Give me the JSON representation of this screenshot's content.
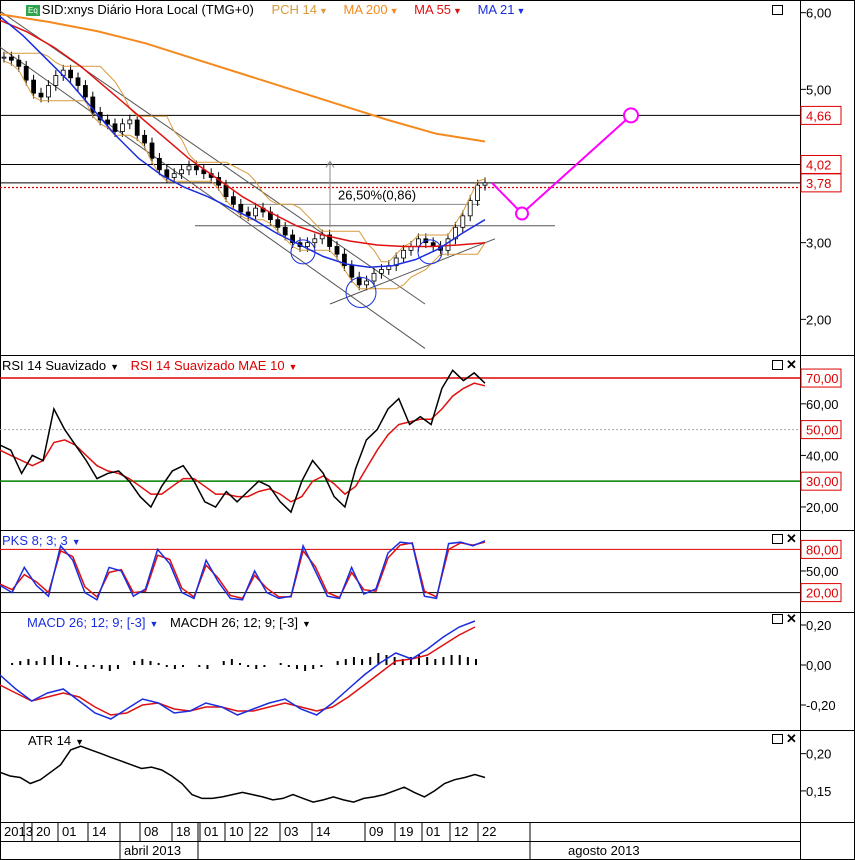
{
  "colors": {
    "price": "#000000",
    "pch14": "#d89a3a",
    "ma200": "#f48a1e",
    "ma55": "#e01010",
    "ma21": "#1a2ee0",
    "projection": "#ff00ff",
    "rsi_overbought_line": "#dd0000",
    "rsi_oversold_line": "#008000",
    "value_label_bg": "#ff0000"
  },
  "price_panel": {
    "symbol_badge": "Eq",
    "title": "SID:xnys Diário Hora Local (TMG+0)",
    "legend": [
      {
        "label": "PCH 14",
        "color": "#d89a3a"
      },
      {
        "label": "MA 200",
        "color": "#f48a1e"
      },
      {
        "label": "MA 55",
        "color": "#e01010"
      },
      {
        "label": "MA 21",
        "color": "#1a2ee0"
      }
    ],
    "annotation": "26,50%(0,86)",
    "price_labels": [
      "4,66",
      "4,02",
      "3,78"
    ],
    "axis_ticks": [
      "6,00",
      "5,00",
      "4,00",
      "3,00",
      "2,00"
    ]
  },
  "rsi_panel": {
    "legend": [
      {
        "label": "RSI 14 Suavizado",
        "color": "#000000"
      },
      {
        "label": "RSI 14 Suavizado MAE 10",
        "color": "#dd0000"
      }
    ],
    "level_labels": [
      "70,00",
      "50,00",
      "30,00"
    ],
    "axis_ticks": [
      "60,00",
      "40,00",
      "20,00"
    ]
  },
  "stoch_panel": {
    "legend": [
      {
        "label": "PKS 8; 3; 3",
        "color": "#1a2ee0"
      }
    ],
    "level_labels": [
      "80,00",
      "20,00"
    ],
    "axis_ticks": [
      "50,00"
    ]
  },
  "macd_panel": {
    "legend": [
      {
        "label": "MACD 26; 12; 9; [-3]",
        "color": "#1a2ee0"
      },
      {
        "label": "MACDH 26; 12; 9; [-3]",
        "color": "#000000"
      }
    ],
    "axis_ticks": [
      "0,20",
      "0,00",
      "-0,20"
    ]
  },
  "atr_panel": {
    "legend": [
      {
        "label": "ATR 14",
        "color": "#000000"
      }
    ],
    "axis_ticks": [
      "0,20",
      "0,15"
    ]
  },
  "time_axis": {
    "day_ticks": [
      "2013",
      "20",
      "01",
      "14",
      "08",
      "18",
      "01",
      "10",
      "22",
      "03",
      "14",
      "09",
      "19",
      "01",
      "12",
      "22"
    ],
    "month_labels": [
      "abril 2013",
      "agosto 2013"
    ]
  },
  "chart_data": [
    {
      "type": "candlestick",
      "panel": "price",
      "ylim": [
        1.6,
        6.1
      ],
      "series": [
        {
          "name": "SID",
          "values": [
            5.42,
            5.38,
            5.3,
            5.12,
            4.95,
            4.9,
            5.05,
            5.18,
            5.25,
            5.15,
            5.05,
            4.9,
            4.7,
            4.6,
            4.55,
            4.45,
            4.55,
            4.6,
            4.4,
            4.3,
            4.1,
            3.95,
            3.85,
            3.9,
            3.95,
            4.0,
            3.95,
            3.9,
            3.85,
            3.75,
            3.6,
            3.5,
            3.4,
            3.35,
            3.45,
            3.4,
            3.3,
            3.2,
            3.1,
            3.0,
            2.95,
            3.0,
            3.05,
            3.1,
            2.95,
            2.85,
            2.7,
            2.55,
            2.45,
            2.5,
            2.6,
            2.65,
            2.7,
            2.8,
            2.9,
            2.95,
            3.05,
            3.0,
            2.95,
            2.9,
            3.05,
            3.2,
            3.35,
            3.55,
            3.75,
            3.78
          ]
        },
        {
          "name": "MA 21",
          "values": [
            5.95,
            5.7,
            5.4,
            5.1,
            4.75,
            4.4,
            4.1,
            3.88,
            3.72,
            3.6,
            3.45,
            3.3,
            3.12,
            2.97,
            2.82,
            2.72,
            2.68,
            2.7,
            2.78,
            2.92,
            3.12,
            3.3
          ]
        },
        {
          "name": "MA 55",
          "values": [
            5.9,
            5.75,
            5.55,
            5.3,
            5.0,
            4.7,
            4.4,
            4.1,
            3.85,
            3.6,
            3.4,
            3.22,
            3.1,
            3.02,
            2.97,
            2.95,
            2.95,
            2.97,
            3.0
          ]
        },
        {
          "name": "MA 200",
          "values": [
            5.98,
            5.88,
            5.76,
            5.6,
            5.4,
            5.2,
            5.0,
            4.8,
            4.6,
            4.42,
            4.32
          ]
        },
        {
          "name": "Projection",
          "values": [
            3.78,
            3.38,
            4.66
          ]
        }
      ]
    },
    {
      "type": "line",
      "panel": "rsi",
      "ylim": [
        13,
        77
      ],
      "series": [
        {
          "name": "RSI 14 Suavizado",
          "values": [
            44,
            42,
            33,
            40,
            38,
            58,
            50,
            44,
            38,
            31,
            33,
            34,
            30,
            24,
            20,
            28,
            34,
            36,
            30,
            22,
            20,
            26,
            22,
            26,
            30,
            28,
            22,
            18,
            30,
            38,
            33,
            24,
            20,
            35,
            46,
            50,
            58,
            62,
            52,
            55,
            52,
            66,
            73,
            69,
            72,
            68
          ]
        },
        {
          "name": "RSI 14 Suavizado MAE 10",
          "values": [
            42,
            40,
            38,
            36,
            38,
            45,
            46,
            44,
            40,
            36,
            34,
            33,
            31,
            28,
            25,
            25,
            28,
            31,
            31,
            28,
            25,
            25,
            24,
            24,
            26,
            27,
            25,
            22,
            24,
            30,
            32,
            29,
            25,
            28,
            35,
            42,
            48,
            52,
            53,
            54,
            54,
            58,
            63,
            66,
            68,
            67
          ]
        }
      ]
    },
    {
      "type": "line",
      "panel": "stochastic",
      "ylim": [
        0,
        100
      ],
      "series": [
        {
          "name": "PKS 8; 3; 3",
          "values": [
            30,
            20,
            55,
            30,
            15,
            85,
            65,
            20,
            10,
            55,
            50,
            15,
            25,
            80,
            60,
            20,
            12,
            65,
            35,
            12,
            10,
            50,
            20,
            12,
            15,
            85,
            50,
            15,
            12,
            55,
            18,
            25,
            75,
            90,
            88,
            15,
            12,
            88,
            90,
            85,
            92
          ]
        },
        {
          "name": "Signal",
          "values": [
            32,
            24,
            45,
            35,
            20,
            78,
            70,
            28,
            14,
            48,
            52,
            20,
            22,
            72,
            66,
            26,
            14,
            58,
            40,
            16,
            12,
            44,
            26,
            14,
            14,
            78,
            56,
            20,
            13,
            48,
            24,
            22,
            68,
            86,
            89,
            22,
            14,
            80,
            89,
            86,
            90
          ]
        }
      ]
    },
    {
      "type": "line",
      "panel": "macd",
      "ylim": [
        -0.3,
        0.24
      ],
      "series": [
        {
          "name": "MACD 26; 12; 9; [-3]",
          "values": [
            -0.05,
            -0.12,
            -0.18,
            -0.14,
            -0.12,
            -0.18,
            -0.24,
            -0.27,
            -0.22,
            -0.17,
            -0.19,
            -0.24,
            -0.23,
            -0.19,
            -0.21,
            -0.25,
            -0.22,
            -0.19,
            -0.17,
            -0.22,
            -0.25,
            -0.19,
            -0.12,
            -0.05,
            0.01,
            0.06,
            0.03,
            0.08,
            0.14,
            0.19,
            0.22
          ]
        },
        {
          "name": "Signal",
          "values": [
            -0.1,
            -0.14,
            -0.18,
            -0.16,
            -0.14,
            -0.16,
            -0.21,
            -0.25,
            -0.24,
            -0.2,
            -0.19,
            -0.22,
            -0.23,
            -0.21,
            -0.21,
            -0.23,
            -0.23,
            -0.21,
            -0.19,
            -0.21,
            -0.23,
            -0.21,
            -0.16,
            -0.1,
            -0.04,
            0.02,
            0.03,
            0.05,
            0.1,
            0.15,
            0.19
          ]
        },
        {
          "name": "MACDH 26; 12; 9; [-3]",
          "values": [
            0.0,
            0.01,
            0.02,
            0.03,
            0.02,
            0.04,
            0.05,
            0.04,
            0.02,
            -0.01,
            -0.02,
            -0.01,
            -0.02,
            -0.03,
            -0.02,
            0.0,
            0.02,
            0.03,
            0.02,
            0.01,
            -0.01,
            -0.02,
            -0.01,
            0.0,
            -0.01,
            -0.02,
            0.0,
            0.02,
            0.03,
            0.01,
            -0.01,
            -0.02,
            -0.01,
            0.0,
            0.01,
            -0.01,
            -0.02,
            -0.03,
            -0.02,
            -0.01,
            0.0,
            0.02,
            0.03,
            0.04,
            0.03,
            0.04,
            0.06,
            0.05,
            0.04,
            0.03,
            0.04,
            0.05,
            0.04,
            0.03,
            0.04,
            0.05,
            0.05,
            0.04,
            0.03
          ]
        }
      ]
    },
    {
      "type": "line",
      "panel": "atr",
      "ylim": [
        0.115,
        0.225
      ],
      "series": [
        {
          "name": "ATR 14",
          "values": [
            0.175,
            0.17,
            0.168,
            0.16,
            0.165,
            0.175,
            0.185,
            0.205,
            0.21,
            0.205,
            0.2,
            0.195,
            0.19,
            0.185,
            0.18,
            0.182,
            0.178,
            0.17,
            0.16,
            0.145,
            0.14,
            0.14,
            0.142,
            0.145,
            0.148,
            0.145,
            0.142,
            0.138,
            0.14,
            0.145,
            0.14,
            0.135,
            0.138,
            0.142,
            0.138,
            0.135,
            0.14,
            0.142,
            0.145,
            0.15,
            0.155,
            0.148,
            0.142,
            0.15,
            0.16,
            0.165,
            0.168,
            0.172,
            0.168
          ]
        }
      ]
    }
  ]
}
